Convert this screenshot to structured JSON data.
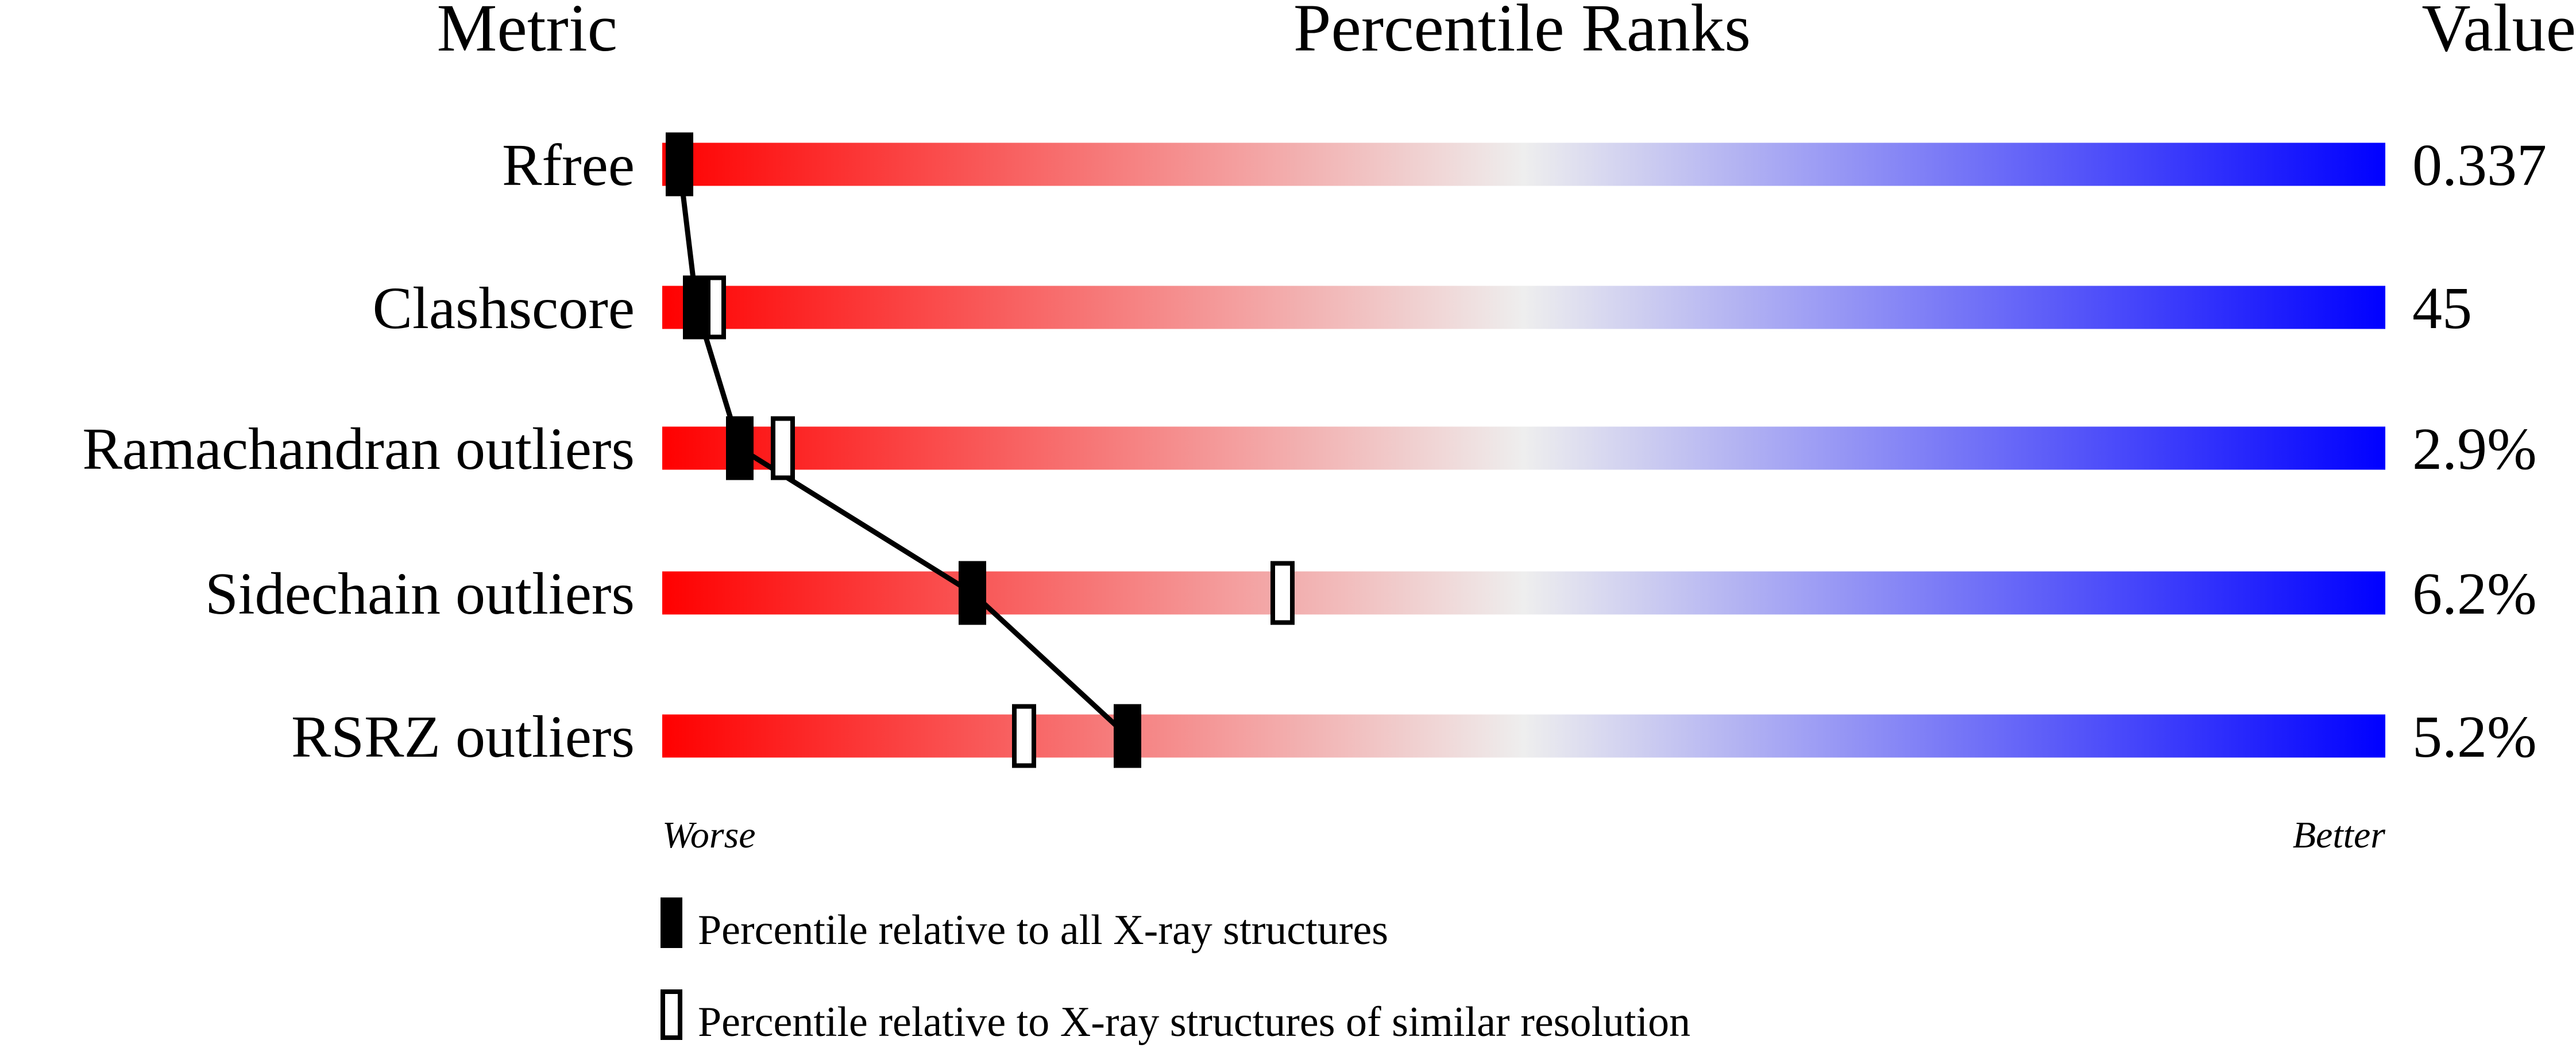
{
  "chart_data": {
    "type": "bar",
    "title": "Percentile Ranks",
    "column_headers": {
      "metric": "Metric",
      "percentile": "Percentile Ranks",
      "value": "Value"
    },
    "xlim": [
      0,
      100
    ],
    "axis_labels": {
      "left": "Worse",
      "right": "Better"
    },
    "gradient_colors": {
      "worse": "#ff0000",
      "middle": "#eeeeee",
      "better": "#0000ff"
    },
    "metrics": [
      {
        "name": "Rfree",
        "value": "0.337",
        "percentile_all": 1,
        "percentile_similar": 1
      },
      {
        "name": "Clashscore",
        "value": "45",
        "percentile_all": 2,
        "percentile_similar": 3
      },
      {
        "name": "Ramachandran outliers",
        "value": "2.9%",
        "percentile_all": 4.5,
        "percentile_similar": 7
      },
      {
        "name": "Sidechain outliers",
        "value": "6.2%",
        "percentile_all": 18,
        "percentile_similar": 36
      },
      {
        "name": "RSRZ outliers",
        "value": "5.2%",
        "percentile_all": 27,
        "percentile_similar": 21
      }
    ],
    "legend": {
      "filled": "Percentile relative to all X-ray structures",
      "open": "Percentile relative to X-ray structures of similar resolution"
    }
  }
}
